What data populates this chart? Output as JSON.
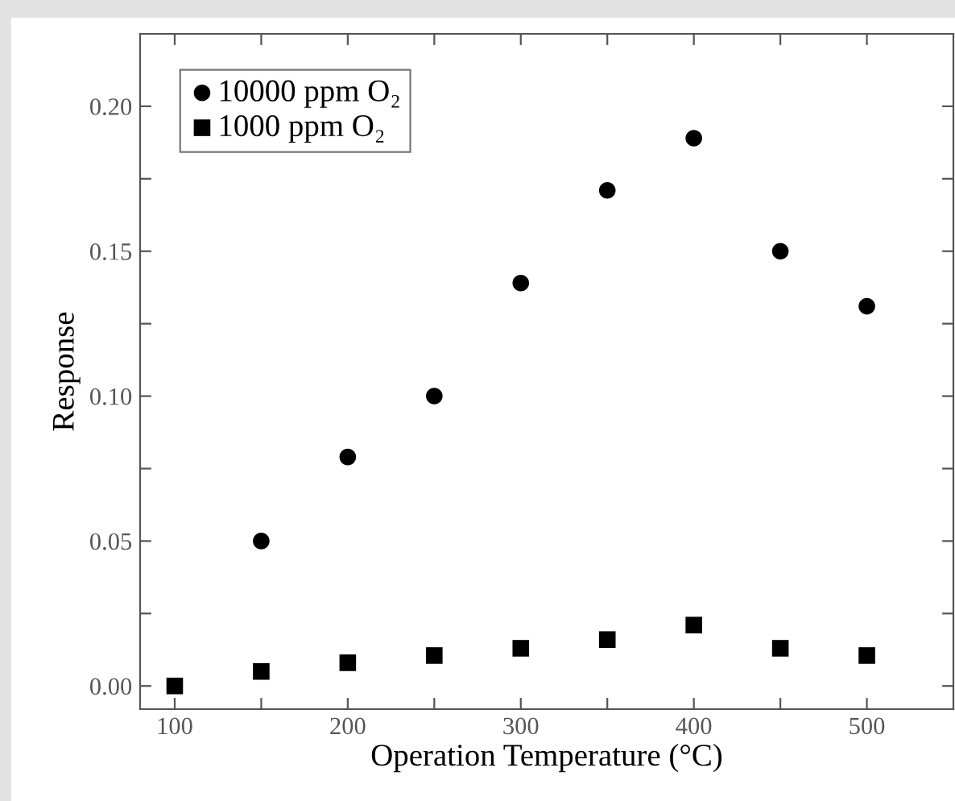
{
  "chart_data": {
    "type": "scatter",
    "xlabel": "Operation Temperature (°C)",
    "ylabel": "Response",
    "x": [
      100,
      150,
      200,
      250,
      300,
      350,
      400,
      450,
      500
    ],
    "series": [
      {
        "name": "10000 ppm O₂",
        "color": "#000000",
        "marker": "circle",
        "values": [
          null,
          0.05,
          0.079,
          0.1,
          0.139,
          0.171,
          0.189,
          0.15,
          0.131
        ]
      },
      {
        "name": "1000 ppm O₂",
        "color": "#000000",
        "marker": "square",
        "values": [
          0.0,
          0.005,
          0.008,
          0.0105,
          0.013,
          0.016,
          0.021,
          0.013,
          0.0105
        ]
      }
    ],
    "xlim": [
      80,
      550
    ],
    "ylim": [
      -0.008,
      0.225
    ],
    "xticks": [
      100,
      {
        "value": 150,
        "label": null
      },
      200,
      {
        "value": 250,
        "label": null
      },
      300,
      {
        "value": 350,
        "label": null
      },
      400,
      {
        "value": 450,
        "label": null
      },
      500
    ],
    "yticks": [
      {
        "value": 0,
        "label": "0.00"
      },
      {
        "value": 0.025,
        "label": null
      },
      {
        "value": 0.05,
        "label": "0.05"
      },
      {
        "value": 0.075,
        "label": null
      },
      {
        "value": 0.1,
        "label": "0.10"
      },
      {
        "value": 0.125,
        "label": null
      },
      {
        "value": 0.15,
        "label": "0.15"
      },
      {
        "value": 0.175,
        "label": null
      },
      {
        "value": 0.2,
        "label": "0.20"
      }
    ],
    "legend": "top left",
    "grid": false
  }
}
